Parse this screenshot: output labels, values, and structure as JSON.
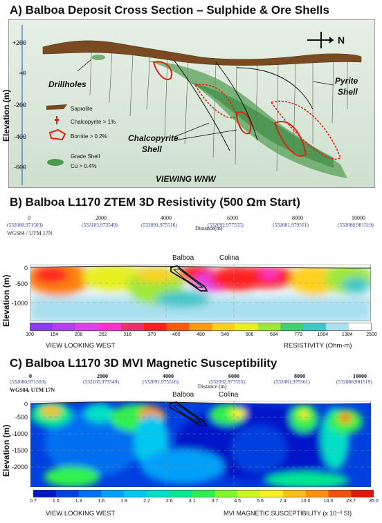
{
  "panel_a": {
    "title": "A) Balboa Deposit Cross Section – Sulphide & Ore Shells",
    "ylabel": "Elevation (m)",
    "yticks": [
      "+200",
      "+0",
      "-200",
      "-400",
      "-600"
    ],
    "labels": {
      "drillholes": "Drillholes",
      "pyrite": "Pyrite",
      "pyrite2": "Shell",
      "chalco": "Chalcopyrite",
      "chalco2": "Shell",
      "viewing": "VIEWING WNW",
      "north": "N"
    },
    "legend": {
      "saprolite": "Saprolite",
      "chalcopyrite": "Chalcopyrite > 1%",
      "bornite": "Bornite > 0.2%",
      "grade_shell": "Grade Shell",
      "cu": "Cu > 0.4%"
    }
  },
  "panel_b": {
    "title": "B) Balboa L1170 ZTEM 3D Resistivity (500 Ωm Start)",
    "distance_ticks": [
      "0",
      "2000",
      "4000",
      "6000",
      "8000",
      "10000"
    ],
    "coords": [
      "(532080,971503)",
      "(532105,973549)",
      "(532091,975516)",
      "(532092,977555)",
      "(532081,979561)",
      "(532088,981519)"
    ],
    "distance_label": "Distance(m)",
    "datum": "WGS84 / UTM 17N",
    "ylabel": "Elevation (m)",
    "yticks": [
      "0",
      "-500",
      "-1000"
    ],
    "balboa": "Balboa",
    "colina": "Colina",
    "colorbar_ticks": [
      "100",
      "154",
      "208",
      "262",
      "316",
      "370",
      "400",
      "480",
      "540",
      "606",
      "684",
      "779",
      "1004",
      "1384",
      "2500"
    ],
    "footer_left": "VIEW LOOKING WEST",
    "footer_right": "RESISTIVITY (Ohm-m)",
    "colors": [
      "#8a3cf0",
      "#b040f0",
      "#e040e8",
      "#ff30d0",
      "#ee3070",
      "#ff2020",
      "#ff5a10",
      "#ff9a10",
      "#ffd020",
      "#e8f020",
      "#a0e838",
      "#40d070",
      "#40c8c8",
      "#a8e0f0",
      "#ffffff"
    ]
  },
  "panel_c": {
    "title": "C) Balboa L1170  3D MVI Magnetic Susceptibility",
    "distance_ticks": [
      "0",
      "2000",
      "4000",
      "6000",
      "8000",
      "10000"
    ],
    "coords": [
      "(532080,971503)",
      "(532105,973549)",
      "(532091,975516)",
      "(532092,977555)",
      "(532081,979561)",
      "(532088,981519)"
    ],
    "distance_label": "Distance (m)",
    "datum": "WGS84, UTM 17N",
    "ylabel": "Elevation (m)",
    "yticks": [
      "0",
      "-500",
      "-1000",
      "-1500",
      "-2000"
    ],
    "balboa": "Balboa",
    "colina": "Colina",
    "colorbar_ticks": [
      "0.7",
      "1.0",
      "1.3",
      "1.6",
      "1.9",
      "2.2",
      "2.6",
      "3.1",
      "3.7",
      "4.5",
      "5.6",
      "7.4",
      "10.0",
      "14.3",
      "23.7",
      "35.0"
    ],
    "footer_left": "VIEW LOOKING WEST",
    "footer_right": "MVI MAGNETIC SUSCEPTIBILITY (x 10⁻³ SI)",
    "colors": [
      "#0018c8",
      "#0040e0",
      "#0070f0",
      "#00a0f8",
      "#00c8f0",
      "#00e0c8",
      "#00e890",
      "#30f050",
      "#80f830",
      "#c8f820",
      "#f8f020",
      "#f8c018",
      "#f89010",
      "#f05010",
      "#e01808"
    ]
  }
}
